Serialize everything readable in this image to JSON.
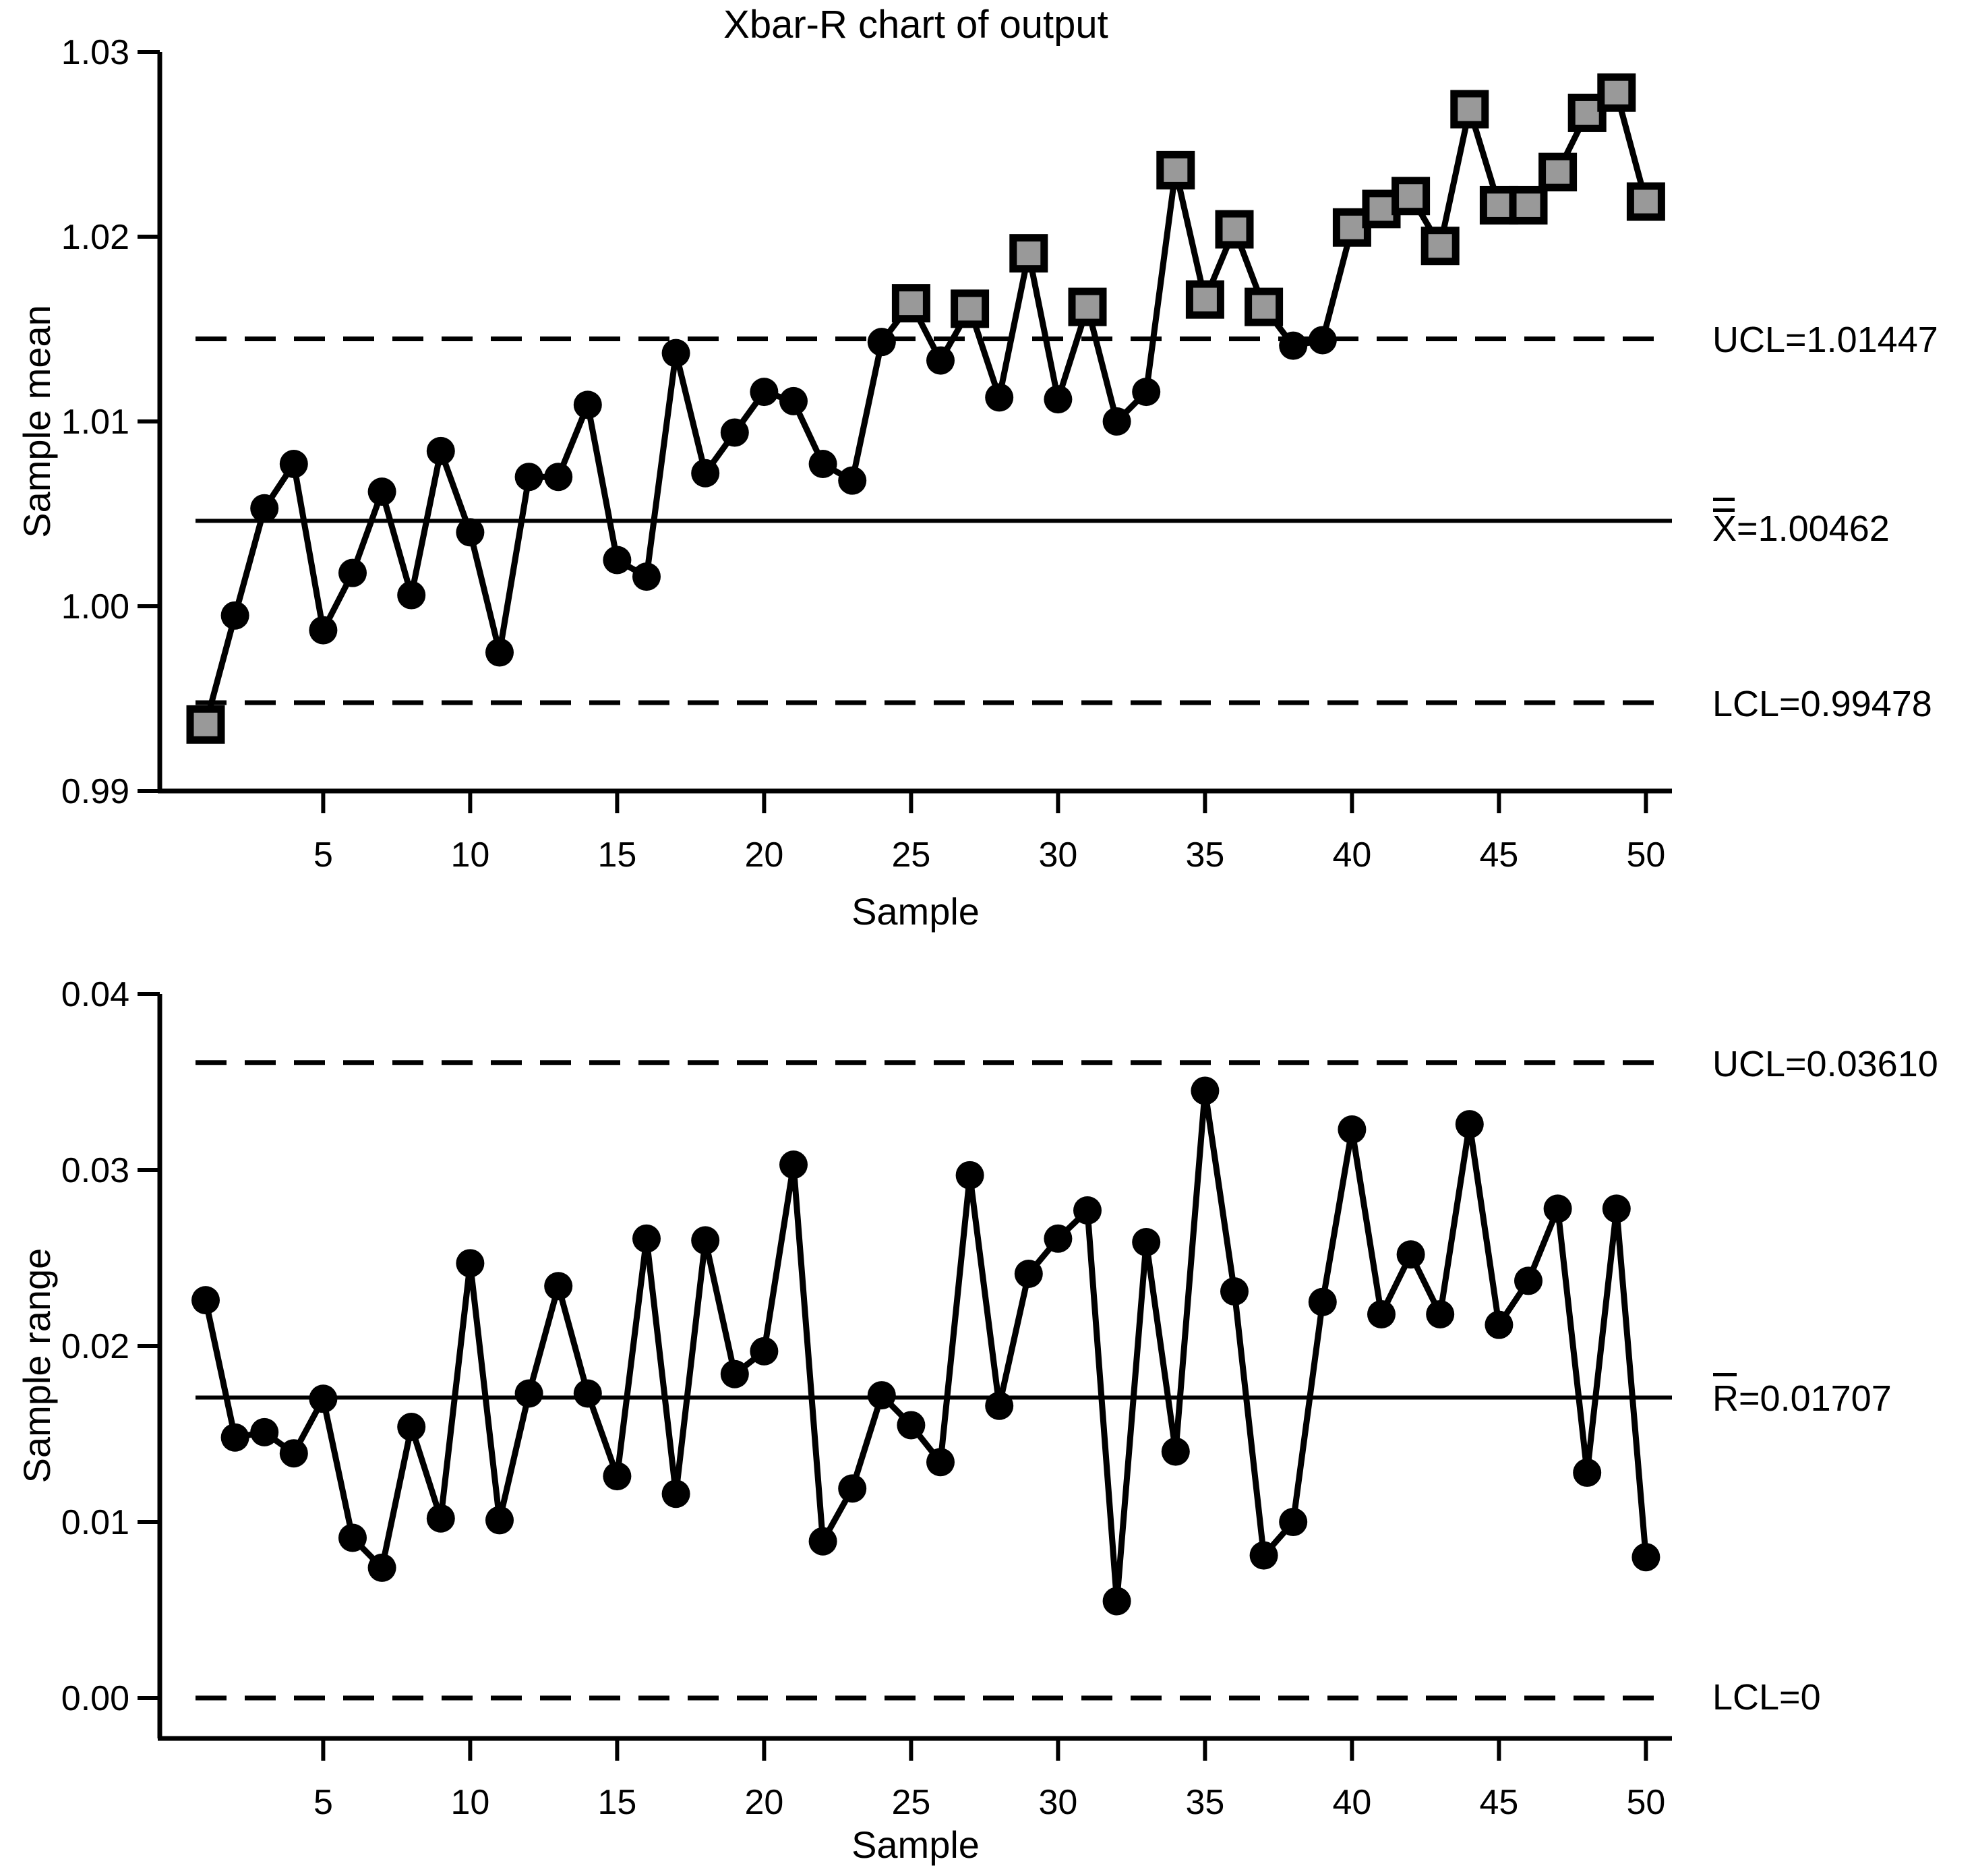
{
  "title": "Xbar-R chart of output",
  "colors": {
    "line": "#000000",
    "text": "#000000",
    "background": "#ffffff",
    "out_of_control_fill": "#999999"
  },
  "chart_data": [
    {
      "type": "line",
      "name": "xbar-chart",
      "title": "Xbar-R chart of output",
      "xlabel": "Sample",
      "ylabel": "Sample mean",
      "ylim": [
        0.99,
        1.03
      ],
      "yticks": [
        1.03,
        1.02,
        1.01,
        1.0,
        0.99
      ],
      "ytick_decimals": 2,
      "xticks": [
        5,
        10,
        15,
        20,
        25,
        30,
        35,
        40,
        45,
        50
      ],
      "grid": false,
      "legend": null,
      "ucl": 1.01447,
      "center": 1.00462,
      "lcl": 0.99478,
      "annotations": [
        {
          "sym": "",
          "text": "UCL=1.01447",
          "v": 1.01447,
          "bars": 0
        },
        {
          "sym": "X",
          "text": "=1.00462",
          "v": 1.00462,
          "bars": 2
        },
        {
          "sym": "",
          "text": "LCL=0.99478",
          "v": 0.99478,
          "bars": 0
        }
      ],
      "x": [
        1,
        2,
        3,
        4,
        5,
        6,
        7,
        8,
        9,
        10,
        11,
        12,
        13,
        14,
        15,
        16,
        17,
        18,
        19,
        20,
        21,
        22,
        23,
        24,
        25,
        26,
        27,
        28,
        29,
        30,
        31,
        32,
        33,
        34,
        35,
        36,
        37,
        38,
        39,
        40,
        41,
        42,
        43,
        44,
        45,
        46,
        47,
        48,
        49,
        50
      ],
      "values": [
        0.9936,
        0.9995,
        1.0053,
        1.0077,
        0.9987,
        1.0018,
        1.0062,
        1.0006,
        1.0084,
        1.004,
        0.9975,
        1.007,
        1.007,
        1.0109,
        1.0025,
        1.0016,
        1.0137,
        1.0072,
        1.0094,
        1.0116,
        1.0111,
        1.0077,
        1.0068,
        1.0143,
        1.0164,
        1.0133,
        1.0161,
        1.0113,
        1.0191,
        1.0112,
        1.0162,
        1.01,
        1.0116,
        1.0236,
        1.0166,
        1.0204,
        1.0162,
        1.0141,
        1.0144,
        1.0205,
        1.0215,
        1.0222,
        1.0195,
        1.0269,
        1.0217,
        1.0217,
        1.0235,
        1.0267,
        1.0278,
        1.0219
      ]
    },
    {
      "type": "line",
      "name": "r-chart",
      "title": "",
      "xlabel": "Sample",
      "ylabel": "Sample range",
      "ylim": [
        0,
        0.04
      ],
      "yticks": [
        0.04,
        0.03,
        0.02,
        0.01,
        0.0
      ],
      "ytick_decimals": 2,
      "xticks": [
        5,
        10,
        15,
        20,
        25,
        30,
        35,
        40,
        45,
        50
      ],
      "grid": false,
      "legend": null,
      "ucl": 0.0361,
      "center": 0.01707,
      "lcl": 0,
      "annotations": [
        {
          "sym": "",
          "text": "UCL=0.03610",
          "v": 0.0361,
          "bars": 0
        },
        {
          "sym": "R",
          "text": "=0.01707",
          "v": 0.01707,
          "bars": 1
        },
        {
          "sym": "",
          "text": "LCL=0",
          "v": 0,
          "bars": 0
        }
      ],
      "x": [
        1,
        2,
        3,
        4,
        5,
        6,
        7,
        8,
        9,
        10,
        11,
        12,
        13,
        14,
        15,
        16,
        17,
        18,
        19,
        20,
        21,
        22,
        23,
        24,
        25,
        26,
        27,
        28,
        29,
        30,
        31,
        32,
        33,
        34,
        35,
        36,
        37,
        38,
        39,
        40,
        41,
        42,
        43,
        44,
        45,
        46,
        47,
        48,
        49,
        50
      ],
      "values": [
        0.0226,
        0.0148,
        0.0151,
        0.0139,
        0.017,
        0.0091,
        0.0074,
        0.0154,
        0.0102,
        0.0247,
        0.0101,
        0.0173,
        0.0234,
        0.0173,
        0.0126,
        0.0261,
        0.0116,
        0.026,
        0.0184,
        0.0197,
        0.0303,
        0.0089,
        0.0119,
        0.0172,
        0.0155,
        0.0134,
        0.0297,
        0.0166,
        0.0241,
        0.0261,
        0.0277,
        0.0055,
        0.0259,
        0.014,
        0.0345,
        0.0231,
        0.0081,
        0.01,
        0.0225,
        0.0323,
        0.0218,
        0.0252,
        0.0218,
        0.0326,
        0.0212,
        0.0237,
        0.0278,
        0.0128,
        0.0278,
        0.008
      ]
    }
  ]
}
